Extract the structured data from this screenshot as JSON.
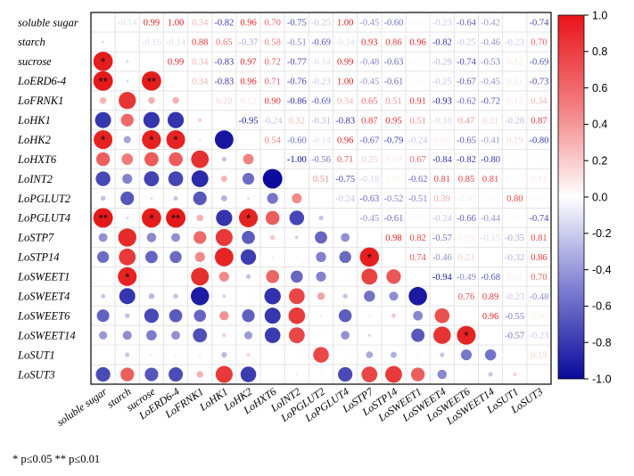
{
  "chart_data": {
    "type": "heatmap",
    "labels": [
      "soluble sugar",
      "starch",
      "sucrose",
      "LoERD6-4",
      "LoFRNK1",
      "LoHK1",
      "LoHK2",
      "LoHXT6",
      "LoINT2",
      "LoPGLUT2",
      "LoPGLUT4",
      "LoSTP7",
      "LoSTP14",
      "LoSWEET1",
      "LoSWEET4",
      "LoSWEET6",
      "LoSWEET14",
      "LoSUT1",
      "LoSUT3"
    ],
    "upper_values": [
      [
        null,
        -0.14,
        0.99,
        1.0,
        0.34,
        -0.82,
        0.96,
        0.7,
        -0.75,
        -0.25,
        1.0,
        -0.45,
        -0.6,
        0.05,
        -0.23,
        -0.64,
        -0.42,
        0.01,
        -0.74
      ],
      [
        null,
        null,
        -0.15,
        -0.14,
        0.88,
        0.65,
        -0.37,
        0.58,
        -0.51,
        -0.69,
        -0.14,
        0.93,
        0.86,
        0.96,
        -0.82,
        -0.25,
        -0.46,
        -0.23,
        0.7
      ],
      [
        null,
        null,
        null,
        0.99,
        0.34,
        -0.83,
        0.97,
        0.72,
        -0.77,
        -0.14,
        0.99,
        -0.48,
        -0.63,
        0.05,
        -0.29,
        -0.74,
        -0.53,
        0.12,
        -0.69
      ],
      [
        null,
        null,
        null,
        null,
        0.34,
        -0.83,
        0.96,
        0.71,
        -0.76,
        -0.23,
        1.0,
        -0.45,
        -0.61,
        0.04,
        -0.25,
        -0.67,
        -0.45,
        0.11,
        -0.73
      ],
      [
        null,
        null,
        null,
        null,
        null,
        0.2,
        0.12,
        0.9,
        -0.86,
        -0.69,
        0.34,
        0.65,
        0.51,
        0.91,
        -0.93,
        -0.62,
        -0.72,
        0.12,
        0.34
      ],
      [
        null,
        null,
        null,
        null,
        null,
        null,
        -0.95,
        -0.24,
        0.32,
        -0.31,
        -0.83,
        0.87,
        0.95,
        0.51,
        -0.18,
        0.47,
        0.21,
        -0.28,
        0.87
      ],
      [
        null,
        null,
        null,
        null,
        null,
        null,
        null,
        0.54,
        -0.6,
        -0.14,
        0.96,
        -0.67,
        -0.79,
        -0.24,
        0.09,
        -0.65,
        -0.41,
        0.19,
        -0.8
      ],
      [
        null,
        null,
        null,
        null,
        null,
        null,
        null,
        null,
        -1.0,
        -0.56,
        0.71,
        0.25,
        0.09,
        0.67,
        -0.84,
        -0.82,
        -0.8,
        0.03,
        0.03
      ],
      [
        null,
        null,
        null,
        null,
        null,
        null,
        null,
        null,
        null,
        0.51,
        -0.75,
        -0.18,
        0.06,
        -0.62,
        0.81,
        0.85,
        0.81,
        0.03,
        0.11
      ],
      [
        null,
        null,
        null,
        null,
        null,
        null,
        null,
        null,
        null,
        null,
        -0.24,
        -0.63,
        -0.52,
        -0.51,
        0.39,
        -0.07,
        0.05,
        0.8,
        0.05
      ],
      [
        null,
        null,
        null,
        null,
        null,
        null,
        null,
        null,
        null,
        null,
        null,
        -0.45,
        -0.61,
        0.05,
        -0.24,
        -0.66,
        -0.44,
        0.05,
        -0.74
      ],
      [
        null,
        null,
        null,
        null,
        null,
        null,
        null,
        null,
        null,
        null,
        null,
        null,
        0.98,
        0.82,
        -0.57,
        0.09,
        -0.15,
        -0.35,
        0.81
      ],
      [
        null,
        null,
        null,
        null,
        null,
        null,
        null,
        null,
        null,
        null,
        null,
        null,
        null,
        0.74,
        -0.46,
        0.23,
        0.01,
        -0.32,
        0.86
      ],
      [
        null,
        null,
        null,
        null,
        null,
        null,
        null,
        null,
        null,
        null,
        null,
        null,
        null,
        null,
        -0.94,
        -0.49,
        -0.68,
        0.07,
        0.7
      ],
      [
        null,
        null,
        null,
        null,
        null,
        null,
        null,
        null,
        null,
        null,
        null,
        null,
        null,
        null,
        null,
        0.76,
        0.89,
        -0.23,
        -0.48
      ],
      [
        null,
        null,
        null,
        null,
        null,
        null,
        null,
        null,
        null,
        null,
        null,
        null,
        null,
        null,
        null,
        null,
        0.96,
        -0.55,
        0.06
      ],
      [
        null,
        null,
        null,
        null,
        null,
        null,
        null,
        null,
        null,
        null,
        null,
        null,
        null,
        null,
        null,
        null,
        null,
        -0.57,
        -0.23
      ],
      [
        null,
        null,
        null,
        null,
        null,
        null,
        null,
        null,
        null,
        null,
        null,
        null,
        null,
        null,
        null,
        null,
        null,
        null,
        0.19
      ],
      [
        null,
        null,
        null,
        null,
        null,
        null,
        null,
        null,
        null,
        null,
        null,
        null,
        null,
        null,
        null,
        null,
        null,
        null,
        null
      ]
    ],
    "lower_values": [
      [],
      [
        -0.14
      ],
      [
        0.99,
        -0.15
      ],
      [
        1.0,
        -0.14,
        0.99
      ],
      [
        0.34,
        0.88,
        0.34,
        0.34
      ],
      [
        -0.82,
        0.65,
        -0.83,
        -0.83,
        0.2
      ],
      [
        0.96,
        -0.37,
        0.97,
        0.96,
        0.12,
        -0.95
      ],
      [
        0.7,
        0.58,
        0.72,
        0.71,
        0.9,
        -0.24,
        0.54
      ],
      [
        -0.75,
        -0.51,
        -0.77,
        -0.76,
        -0.86,
        0.32,
        -0.6,
        -1.0
      ],
      [
        -0.25,
        -0.69,
        -0.14,
        -0.23,
        -0.69,
        -0.31,
        -0.14,
        -0.56,
        0.51
      ],
      [
        1.0,
        -0.14,
        0.99,
        1.0,
        0.34,
        -0.83,
        0.96,
        0.71,
        -0.75,
        -0.24
      ],
      [
        -0.45,
        0.93,
        -0.48,
        -0.45,
        0.65,
        0.87,
        -0.67,
        0.25,
        -0.18,
        -0.63,
        -0.45
      ],
      [
        -0.6,
        0.86,
        -0.63,
        -0.61,
        0.51,
        0.95,
        -0.79,
        0.09,
        0.06,
        -0.52,
        -0.61,
        0.98
      ],
      [
        0.05,
        0.96,
        0.05,
        0.04,
        0.91,
        0.51,
        -0.24,
        0.67,
        -0.62,
        -0.51,
        0.05,
        0.82,
        0.74
      ],
      [
        -0.23,
        -0.82,
        -0.29,
        -0.25,
        -0.93,
        -0.18,
        0.09,
        -0.84,
        0.81,
        0.39,
        -0.24,
        -0.57,
        -0.46,
        -0.94
      ],
      [
        -0.64,
        -0.25,
        -0.74,
        -0.67,
        -0.62,
        0.47,
        -0.65,
        -0.82,
        0.85,
        -0.07,
        -0.66,
        0.09,
        0.23,
        -0.49,
        0.76
      ],
      [
        -0.42,
        -0.46,
        -0.53,
        -0.45,
        -0.72,
        0.21,
        -0.41,
        -0.8,
        0.81,
        0.05,
        -0.44,
        -0.15,
        0.01,
        -0.68,
        0.89,
        0.96
      ],
      [
        0.01,
        -0.23,
        0.12,
        0.11,
        0.12,
        -0.28,
        0.19,
        0.03,
        0.03,
        0.8,
        0.05,
        -0.35,
        -0.32,
        0.07,
        -0.23,
        -0.55,
        -0.57
      ],
      [
        -0.74,
        0.7,
        -0.69,
        -0.73,
        0.34,
        0.87,
        -0.8,
        0.03,
        0.11,
        0.05,
        -0.74,
        0.81,
        0.86,
        0.7,
        -0.48,
        0.06,
        -0.23,
        0.19
      ]
    ],
    "significance": [
      {
        "row": 2,
        "col": 0,
        "mark": "*"
      },
      {
        "row": 3,
        "col": 0,
        "mark": "**"
      },
      {
        "row": 3,
        "col": 2,
        "mark": "**"
      },
      {
        "row": 6,
        "col": 0,
        "mark": "*"
      },
      {
        "row": 6,
        "col": 2,
        "mark": "*"
      },
      {
        "row": 6,
        "col": 3,
        "mark": "*"
      },
      {
        "row": 10,
        "col": 0,
        "mark": "**"
      },
      {
        "row": 10,
        "col": 2,
        "mark": "*"
      },
      {
        "row": 10,
        "col": 3,
        "mark": "**"
      },
      {
        "row": 10,
        "col": 6,
        "mark": "*"
      },
      {
        "row": 12,
        "col": 11,
        "mark": "*"
      },
      {
        "row": 13,
        "col": 1,
        "mark": "*"
      },
      {
        "row": 16,
        "col": 15,
        "mark": "*"
      }
    ],
    "colorbar": {
      "min": -1.0,
      "max": 1.0,
      "ticks": [
        "1.0",
        "0.8",
        "0.6",
        "0.4",
        "0.2",
        "0.0",
        "-0.2",
        "-0.4",
        "-0.6",
        "-0.8",
        "-1.0"
      ]
    },
    "colors": {
      "positive": "#e41a1c",
      "negative": "#0a0a9c",
      "neutral": "#ffffff"
    },
    "footnote": "* p≤0.05  ** p≤0.01"
  }
}
